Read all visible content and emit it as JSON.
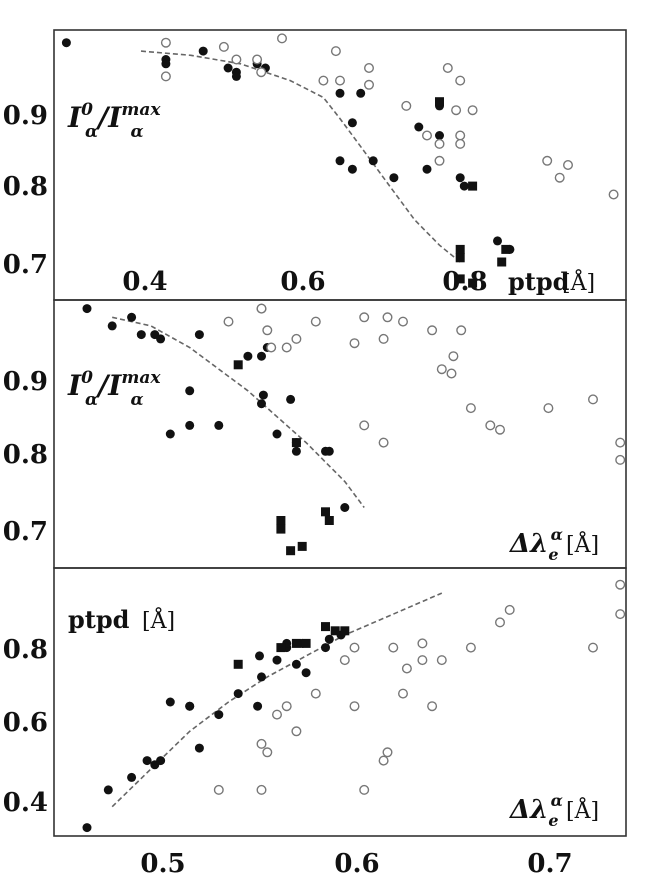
{
  "chart_data": [
    {
      "type": "scatter",
      "ylabel": "I_α^0/I_α^max",
      "xlabel_main": "ptpd",
      "xlabel_unit": "[Å]",
      "x_ticks": [
        "0.4",
        "0.6",
        "0.8"
      ],
      "y_ticks": [
        "0.7",
        "0.8",
        "0.9"
      ],
      "xlim": [
        0.255,
        0.945
      ],
      "ylim": [
        0.675,
        0.995
      ],
      "series": [
        {
          "marker": "filled-circle",
          "points": [
            [
              0.27,
              0.98
            ],
            [
              0.39,
              0.96
            ],
            [
              0.39,
              0.955
            ],
            [
              0.435,
              0.97
            ],
            [
              0.465,
              0.95
            ],
            [
              0.475,
              0.945
            ],
            [
              0.475,
              0.94
            ],
            [
              0.5,
              0.955
            ],
            [
              0.51,
              0.95
            ],
            [
              0.6,
              0.92
            ],
            [
              0.615,
              0.885
            ],
            [
              0.625,
              0.92
            ],
            [
              0.64,
              0.84
            ],
            [
              0.665,
              0.82
            ],
            [
              0.695,
              0.88
            ],
            [
              0.705,
              0.83
            ],
            [
              0.72,
              0.87
            ],
            [
              0.72,
              0.905
            ],
            [
              0.745,
              0.82
            ],
            [
              0.75,
              0.81
            ],
            [
              0.79,
              0.745
            ],
            [
              0.805,
              0.735
            ],
            [
              0.6,
              0.84
            ],
            [
              0.615,
              0.83
            ]
          ]
        },
        {
          "marker": "open-circle",
          "points": [
            [
              0.39,
              0.98
            ],
            [
              0.39,
              0.94
            ],
            [
              0.46,
              0.975
            ],
            [
              0.475,
              0.96
            ],
            [
              0.5,
              0.96
            ],
            [
              0.505,
              0.945
            ],
            [
              0.53,
              0.985
            ],
            [
              0.58,
              0.935
            ],
            [
              0.595,
              0.97
            ],
            [
              0.6,
              0.935
            ],
            [
              0.635,
              0.95
            ],
            [
              0.635,
              0.93
            ],
            [
              0.68,
              0.905
            ],
            [
              0.705,
              0.87
            ],
            [
              0.73,
              0.95
            ],
            [
              0.74,
              0.9
            ],
            [
              0.745,
              0.935
            ],
            [
              0.745,
              0.87
            ],
            [
              0.745,
              0.86
            ],
            [
              0.76,
              0.9
            ],
            [
              0.72,
              0.86
            ],
            [
              0.72,
              0.84
            ],
            [
              0.85,
              0.84
            ],
            [
              0.865,
              0.82
            ],
            [
              0.875,
              0.835
            ],
            [
              0.93,
              0.8
            ]
          ]
        },
        {
          "marker": "filled-square",
          "points": [
            [
              0.745,
              0.735
            ],
            [
              0.745,
              0.725
            ],
            [
              0.745,
              0.7
            ],
            [
              0.76,
              0.81
            ],
            [
              0.76,
              0.695
            ],
            [
              0.795,
              0.72
            ],
            [
              0.8,
              0.735
            ],
            [
              0.72,
              0.91
            ]
          ]
        }
      ],
      "trend": [
        [
          0.36,
          0.97
        ],
        [
          0.42,
          0.965
        ],
        [
          0.48,
          0.955
        ],
        [
          0.54,
          0.935
        ],
        [
          0.58,
          0.915
        ],
        [
          0.6,
          0.89
        ],
        [
          0.63,
          0.85
        ],
        [
          0.66,
          0.81
        ],
        [
          0.69,
          0.77
        ],
        [
          0.72,
          0.74
        ],
        [
          0.745,
          0.72
        ]
      ]
    },
    {
      "type": "scatter",
      "ylabel": "I_α^0/I_α^max",
      "xlabel_main": "Δλ_e^α",
      "xlabel_unit": "[Å]",
      "y_ticks": [
        "0.7",
        "0.8",
        "0.9"
      ],
      "xlim": [
        0.45,
        0.745
      ],
      "ylim": [
        0.675,
        0.985
      ],
      "series": [
        {
          "marker": "filled-circle",
          "points": [
            [
              0.467,
              0.975
            ],
            [
              0.48,
              0.955
            ],
            [
              0.49,
              0.965
            ],
            [
              0.495,
              0.945
            ],
            [
              0.502,
              0.945
            ],
            [
              0.505,
              0.94
            ],
            [
              0.52,
              0.88
            ],
            [
              0.52,
              0.84
            ],
            [
              0.525,
              0.945
            ],
            [
              0.51,
              0.83
            ],
            [
              0.535,
              0.84
            ],
            [
              0.55,
              0.92
            ],
            [
              0.557,
              0.865
            ],
            [
              0.558,
              0.875
            ],
            [
              0.557,
              0.92
            ],
            [
              0.565,
              0.83
            ],
            [
              0.572,
              0.87
            ],
            [
              0.575,
              0.82
            ],
            [
              0.575,
              0.81
            ],
            [
              0.59,
              0.81
            ],
            [
              0.592,
              0.81
            ],
            [
              0.6,
              0.745
            ],
            [
              0.56,
              0.93
            ]
          ]
        },
        {
          "marker": "open-circle",
          "points": [
            [
              0.54,
              0.96
            ],
            [
              0.557,
              0.975
            ],
            [
              0.557,
              0.975
            ],
            [
              0.56,
              0.95
            ],
            [
              0.562,
              0.93
            ],
            [
              0.57,
              0.93
            ],
            [
              0.585,
              0.96
            ],
            [
              0.605,
              0.935
            ],
            [
              0.61,
              0.84
            ],
            [
              0.61,
              0.965
            ],
            [
              0.62,
              0.94
            ],
            [
              0.622,
              0.965
            ],
            [
              0.62,
              0.82
            ],
            [
              0.63,
              0.96
            ],
            [
              0.645,
              0.95
            ],
            [
              0.65,
              0.905
            ],
            [
              0.655,
              0.9
            ],
            [
              0.656,
              0.92
            ],
            [
              0.66,
              0.95
            ],
            [
              0.665,
              0.86
            ],
            [
              0.675,
              0.84
            ],
            [
              0.68,
              0.835
            ],
            [
              0.705,
              0.86
            ],
            [
              0.728,
              0.87
            ],
            [
              0.742,
              0.82
            ],
            [
              0.742,
              0.8
            ],
            [
              0.575,
              0.94
            ]
          ]
        },
        {
          "marker": "filled-square",
          "points": [
            [
              0.545,
              0.91
            ],
            [
              0.567,
              0.73
            ],
            [
              0.567,
              0.72
            ],
            [
              0.572,
              0.695
            ],
            [
              0.578,
              0.7
            ],
            [
              0.59,
              0.74
            ],
            [
              0.592,
              0.73
            ],
            [
              0.575,
              0.82
            ]
          ]
        }
      ],
      "trend": [
        [
          0.48,
          0.965
        ],
        [
          0.5,
          0.955
        ],
        [
          0.52,
          0.93
        ],
        [
          0.55,
          0.88
        ],
        [
          0.58,
          0.82
        ],
        [
          0.6,
          0.775
        ],
        [
          0.61,
          0.745
        ]
      ]
    },
    {
      "type": "scatter",
      "ylabel": "ptpd",
      "ylabel_unit": "[Å]",
      "xlabel_main": "Δλ_e^α",
      "xlabel_unit": "[Å]",
      "x_ticks": [
        "0.5",
        "0.6",
        "0.7"
      ],
      "y_ticks": [
        "0.4",
        "0.6",
        "0.8"
      ],
      "xlim": [
        0.45,
        0.745
      ],
      "ylim": [
        0.31,
        0.95
      ],
      "series": [
        {
          "marker": "filled-circle",
          "points": [
            [
              0.467,
              0.33
            ],
            [
              0.478,
              0.42
            ],
            [
              0.49,
              0.45
            ],
            [
              0.498,
              0.49
            ],
            [
              0.502,
              0.48
            ],
            [
              0.505,
              0.49
            ],
            [
              0.51,
              0.63
            ],
            [
              0.52,
              0.62
            ],
            [
              0.52,
              0.62
            ],
            [
              0.525,
              0.52
            ],
            [
              0.535,
              0.6
            ],
            [
              0.545,
              0.65
            ],
            [
              0.555,
              0.62
            ],
            [
              0.557,
              0.69
            ],
            [
              0.565,
              0.73
            ],
            [
              0.57,
              0.76
            ],
            [
              0.575,
              0.72
            ],
            [
              0.578,
              0.77
            ],
            [
              0.58,
              0.7
            ],
            [
              0.59,
              0.76
            ],
            [
              0.592,
              0.78
            ],
            [
              0.598,
              0.79
            ],
            [
              0.556,
              0.74
            ],
            [
              0.57,
              0.77
            ]
          ]
        },
        {
          "marker": "open-circle",
          "points": [
            [
              0.535,
              0.42
            ],
            [
              0.557,
              0.42
            ],
            [
              0.557,
              0.53
            ],
            [
              0.56,
              0.51
            ],
            [
              0.565,
              0.6
            ],
            [
              0.57,
              0.62
            ],
            [
              0.575,
              0.56
            ],
            [
              0.585,
              0.65
            ],
            [
              0.6,
              0.73
            ],
            [
              0.605,
              0.62
            ],
            [
              0.605,
              0.76
            ],
            [
              0.61,
              0.42
            ],
            [
              0.62,
              0.49
            ],
            [
              0.622,
              0.51
            ],
            [
              0.625,
              0.76
            ],
            [
              0.63,
              0.65
            ],
            [
              0.632,
              0.71
            ],
            [
              0.64,
              0.73
            ],
            [
              0.64,
              0.77
            ],
            [
              0.645,
              0.62
            ],
            [
              0.65,
              0.73
            ],
            [
              0.665,
              0.76
            ],
            [
              0.68,
              0.82
            ],
            [
              0.685,
              0.85
            ],
            [
              0.728,
              0.76
            ],
            [
              0.742,
              0.91
            ],
            [
              0.742,
              0.84
            ]
          ]
        },
        {
          "marker": "filled-square",
          "points": [
            [
              0.545,
              0.72
            ],
            [
              0.567,
              0.76
            ],
            [
              0.575,
              0.77
            ],
            [
              0.58,
              0.77
            ],
            [
              0.59,
              0.81
            ],
            [
              0.595,
              0.8
            ],
            [
              0.6,
              0.8
            ]
          ]
        }
      ],
      "trend": [
        [
          0.48,
          0.38
        ],
        [
          0.5,
          0.47
        ],
        [
          0.52,
          0.56
        ],
        [
          0.54,
          0.63
        ],
        [
          0.56,
          0.69
        ],
        [
          0.58,
          0.74
        ],
        [
          0.6,
          0.79
        ],
        [
          0.625,
          0.84
        ],
        [
          0.65,
          0.89
        ]
      ]
    }
  ]
}
